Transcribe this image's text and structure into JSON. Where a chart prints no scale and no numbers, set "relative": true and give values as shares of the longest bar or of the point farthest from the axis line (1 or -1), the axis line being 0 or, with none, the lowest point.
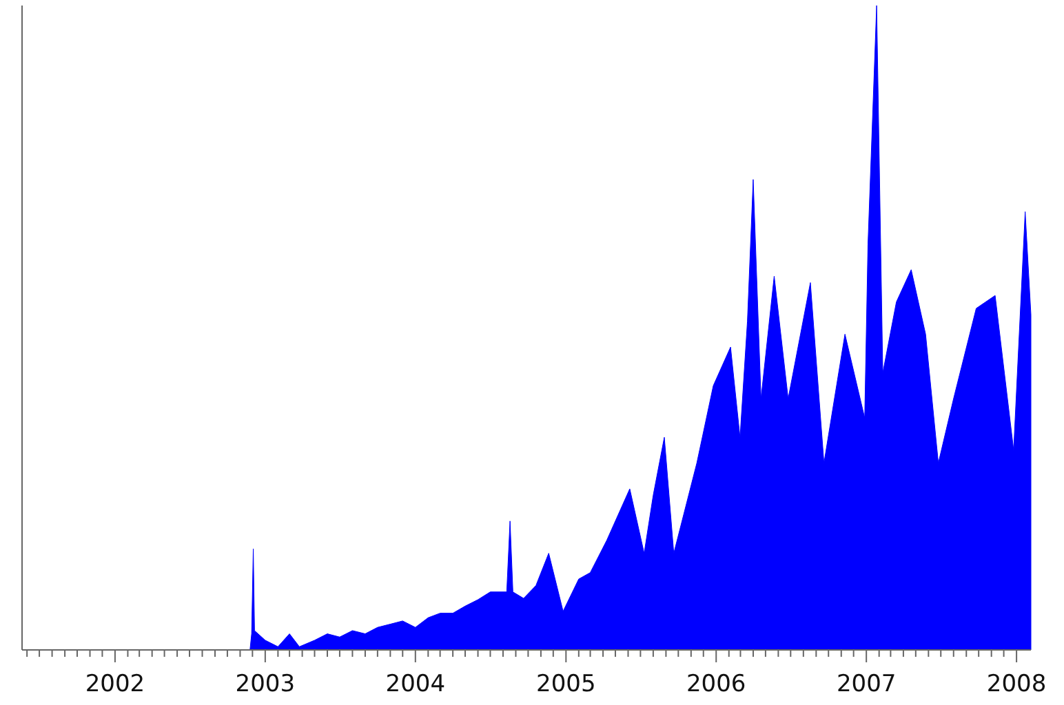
{
  "chart_data": {
    "type": "area",
    "relative": true,
    "xlim": [
      "2001-05-20",
      "2008-02-05"
    ],
    "xticks": [
      {
        "value": "2001-06",
        "label": null
      },
      {
        "value": "2001-07",
        "label": null
      },
      {
        "value": "2001-08",
        "label": null
      },
      {
        "value": "2001-09",
        "label": null
      },
      {
        "value": "2001-10",
        "label": null
      },
      {
        "value": "2001-11",
        "label": null
      },
      {
        "value": "2001-12",
        "label": null
      },
      {
        "value": "2002",
        "label": "2002"
      },
      {
        "value": "2002-02",
        "label": null
      },
      {
        "value": "2002-03",
        "label": null
      },
      {
        "value": "2002-04",
        "label": null
      },
      {
        "value": "2002-05",
        "label": null
      },
      {
        "value": "2002-06",
        "label": null
      },
      {
        "value": "2002-07",
        "label": null
      },
      {
        "value": "2002-08",
        "label": null
      },
      {
        "value": "2002-09",
        "label": null
      },
      {
        "value": "2002-10",
        "label": null
      },
      {
        "value": "2002-11",
        "label": null
      },
      {
        "value": "2002-12",
        "label": null
      },
      {
        "value": "2003",
        "label": "2003"
      },
      {
        "value": "2003-02",
        "label": null
      },
      {
        "value": "2003-03",
        "label": null
      },
      {
        "value": "2003-04",
        "label": null
      },
      {
        "value": "2003-05",
        "label": null
      },
      {
        "value": "2003-06",
        "label": null
      },
      {
        "value": "2003-07",
        "label": null
      },
      {
        "value": "2003-08",
        "label": null
      },
      {
        "value": "2003-09",
        "label": null
      },
      {
        "value": "2003-10",
        "label": null
      },
      {
        "value": "2003-11",
        "label": null
      },
      {
        "value": "2003-12",
        "label": null
      },
      {
        "value": "2004",
        "label": "2004"
      },
      {
        "value": "2004-02",
        "label": null
      },
      {
        "value": "2004-03",
        "label": null
      },
      {
        "value": "2004-04",
        "label": null
      },
      {
        "value": "2004-05",
        "label": null
      },
      {
        "value": "2004-06",
        "label": null
      },
      {
        "value": "2004-07",
        "label": null
      },
      {
        "value": "2004-08",
        "label": null
      },
      {
        "value": "2004-09",
        "label": null
      },
      {
        "value": "2004-10",
        "label": null
      },
      {
        "value": "2004-11",
        "label": null
      },
      {
        "value": "2004-12",
        "label": null
      },
      {
        "value": "2005",
        "label": "2005"
      },
      {
        "value": "2005-02",
        "label": null
      },
      {
        "value": "2005-03",
        "label": null
      },
      {
        "value": "2005-04",
        "label": null
      },
      {
        "value": "2005-05",
        "label": null
      },
      {
        "value": "2005-06",
        "label": null
      },
      {
        "value": "2005-07",
        "label": null
      },
      {
        "value": "2005-08",
        "label": null
      },
      {
        "value": "2005-09",
        "label": null
      },
      {
        "value": "2005-10",
        "label": null
      },
      {
        "value": "2005-11",
        "label": null
      },
      {
        "value": "2005-12",
        "label": null
      },
      {
        "value": "2006",
        "label": "2006"
      },
      {
        "value": "2006-02",
        "label": null
      },
      {
        "value": "2006-03",
        "label": null
      },
      {
        "value": "2006-04",
        "label": null
      },
      {
        "value": "2006-05",
        "label": null
      },
      {
        "value": "2006-06",
        "label": null
      },
      {
        "value": "2006-07",
        "label": null
      },
      {
        "value": "2006-08",
        "label": null
      },
      {
        "value": "2006-09",
        "label": null
      },
      {
        "value": "2006-10",
        "label": null
      },
      {
        "value": "2006-11",
        "label": null
      },
      {
        "value": "2006-12",
        "label": null
      },
      {
        "value": "2007",
        "label": "2007"
      },
      {
        "value": "2007-02",
        "label": null
      },
      {
        "value": "2007-03",
        "label": null
      },
      {
        "value": "2007-04",
        "label": null
      },
      {
        "value": "2007-05",
        "label": null
      },
      {
        "value": "2007-06",
        "label": null
      },
      {
        "value": "2007-07",
        "label": null
      },
      {
        "value": "2007-08",
        "label": null
      },
      {
        "value": "2007-09",
        "label": null
      },
      {
        "value": "2007-10",
        "label": null
      },
      {
        "value": "2007-11",
        "label": null
      },
      {
        "value": "2007-12",
        "label": null
      },
      {
        "value": "2008",
        "label": "2008"
      }
    ],
    "x": [
      "2002-11-25",
      "2002-11-29",
      "2002-12-03",
      "2002-12-06",
      "2003-01-01",
      "2003-02-01",
      "2003-03-01",
      "2003-03-25",
      "2003-05-01",
      "2003-06-01",
      "2003-07-01",
      "2003-08-01",
      "2003-09-01",
      "2003-10-01",
      "2003-11-01",
      "2003-12-01",
      "2004-01-01",
      "2004-02-01",
      "2004-03-01",
      "2004-04-01",
      "2004-05-01",
      "2004-06-01",
      "2004-07-01",
      "2004-08-10",
      "2004-08-18",
      "2004-08-25",
      "2004-09-20",
      "2004-10-20",
      "2004-11-20",
      "2004-12-25",
      "2005-02-01",
      "2005-03-01",
      "2005-04-10",
      "2005-06-05",
      "2005-07-10",
      "2005-08-01",
      "2005-08-28",
      "2005-09-20",
      "2005-11-15",
      "2005-12-25",
      "2006-02-05",
      "2006-02-28",
      "2006-03-18",
      "2006-04-01",
      "2006-04-20",
      "2006-05-22",
      "2006-06-25",
      "2006-08-18",
      "2006-09-20",
      "2006-11-10",
      "2006-12-28",
      "2007-01-05",
      "2007-01-26",
      "2007-02-10",
      "2007-03-15",
      "2007-04-20",
      "2007-05-25",
      "2007-06-25",
      "2007-08-01",
      "2007-09-25",
      "2007-11-10",
      "2007-12-25",
      "2008-01-22",
      "2008-02-05"
    ],
    "series": [
      {
        "color": "#0000ff",
        "values": [
          0,
          0.025,
          0.157,
          0.03,
          0.015,
          0.005,
          0.025,
          0.005,
          0.015,
          0.025,
          0.02,
          0.03,
          0.025,
          0.035,
          0.04,
          0.045,
          0.035,
          0.05,
          0.057,
          0.057,
          0.068,
          0.078,
          0.09,
          0.09,
          0.2,
          0.09,
          0.08,
          0.1,
          0.15,
          0.06,
          0.11,
          0.12,
          0.17,
          0.25,
          0.15,
          0.24,
          0.33,
          0.15,
          0.29,
          0.41,
          0.47,
          0.33,
          0.51,
          0.73,
          0.39,
          0.58,
          0.39,
          0.57,
          0.29,
          0.49,
          0.36,
          0.63,
          1,
          0.43,
          0.54,
          0.59,
          0.49,
          0.29,
          0.39,
          0.53,
          0.55,
          0.31,
          0.68,
          0.52
        ]
      }
    ]
  }
}
